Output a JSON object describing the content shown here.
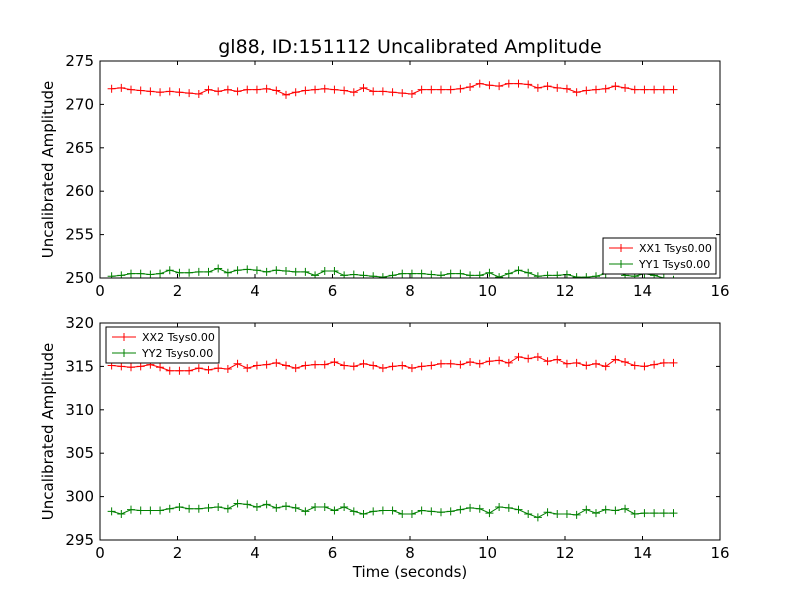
{
  "figure": {
    "title": "gl88, ID:151112 Uncalibrated Amplitude"
  },
  "chart_data": [
    {
      "type": "line",
      "title": "gl88, ID:151112 Uncalibrated Amplitude",
      "xlabel": "",
      "ylabel": "Uncalibrated Amplitude",
      "xlim": [
        0,
        16
      ],
      "ylim": [
        250,
        275
      ],
      "xticks": [
        0,
        2,
        4,
        6,
        8,
        10,
        12,
        14,
        16
      ],
      "yticks": [
        250,
        255,
        260,
        265,
        270,
        275
      ],
      "grid": false,
      "legend_position": "lower-right",
      "x": [
        0.3,
        0.55,
        0.8,
        1.05,
        1.3,
        1.55,
        1.8,
        2.05,
        2.3,
        2.55,
        2.8,
        3.05,
        3.3,
        3.55,
        3.8,
        4.05,
        4.3,
        4.55,
        4.8,
        5.05,
        5.3,
        5.55,
        5.8,
        6.05,
        6.3,
        6.55,
        6.8,
        7.05,
        7.3,
        7.55,
        7.8,
        8.05,
        8.3,
        8.55,
        8.8,
        9.05,
        9.3,
        9.55,
        9.8,
        10.05,
        10.3,
        10.55,
        10.8,
        11.05,
        11.3,
        11.55,
        11.8,
        12.05,
        12.3,
        12.55,
        12.8,
        13.05,
        13.3,
        13.55,
        13.8,
        14.05,
        14.3,
        14.55,
        14.8
      ],
      "series": [
        {
          "name": "XX1 Tsys0.00",
          "color": "#ff0000",
          "values": [
            271.8,
            271.9,
            271.7,
            271.6,
            271.5,
            271.4,
            271.5,
            271.4,
            271.3,
            271.2,
            271.7,
            271.5,
            271.7,
            271.5,
            271.7,
            271.7,
            271.8,
            271.6,
            271.1,
            271.4,
            271.6,
            271.7,
            271.8,
            271.7,
            271.6,
            271.4,
            271.9,
            271.5,
            271.5,
            271.4,
            271.3,
            271.2,
            271.7,
            271.7,
            271.7,
            271.7,
            271.8,
            272.0,
            272.4,
            272.2,
            272.1,
            272.4,
            272.4,
            272.3,
            271.9,
            272.1,
            271.9,
            271.8,
            271.4,
            271.6,
            271.7,
            271.8,
            272.1,
            271.9,
            271.7,
            271.7,
            271.7,
            271.7,
            271.7
          ]
        },
        {
          "name": "YY1 Tsys0.00",
          "color": "#008000",
          "values": [
            250.2,
            250.3,
            250.5,
            250.5,
            250.4,
            250.5,
            250.9,
            250.6,
            250.6,
            250.7,
            250.7,
            251.1,
            250.6,
            250.9,
            251.0,
            250.9,
            250.7,
            250.9,
            250.8,
            250.7,
            250.7,
            250.3,
            250.8,
            250.8,
            250.3,
            250.4,
            250.3,
            250.2,
            250.1,
            250.3,
            250.5,
            250.5,
            250.5,
            250.4,
            250.3,
            250.5,
            250.5,
            250.3,
            250.3,
            250.6,
            250.1,
            250.5,
            250.9,
            250.6,
            250.2,
            250.3,
            250.3,
            250.4,
            250.1,
            250.1,
            250.2,
            250.5,
            250.9,
            250.3,
            250.2,
            250.5,
            250.3,
            250.0,
            249.8
          ]
        }
      ]
    },
    {
      "type": "line",
      "title": "",
      "xlabel": "Time (seconds)",
      "ylabel": "Uncalibrated Amplitude",
      "xlim": [
        0,
        16
      ],
      "ylim": [
        295,
        320
      ],
      "xticks": [
        0,
        2,
        4,
        6,
        8,
        10,
        12,
        14,
        16
      ],
      "yticks": [
        295,
        300,
        305,
        310,
        315,
        320
      ],
      "grid": false,
      "legend_position": "upper-left",
      "x": [
        0.3,
        0.55,
        0.8,
        1.05,
        1.3,
        1.55,
        1.8,
        2.05,
        2.3,
        2.55,
        2.8,
        3.05,
        3.3,
        3.55,
        3.8,
        4.05,
        4.3,
        4.55,
        4.8,
        5.05,
        5.3,
        5.55,
        5.8,
        6.05,
        6.3,
        6.55,
        6.8,
        7.05,
        7.3,
        7.55,
        7.8,
        8.05,
        8.3,
        8.55,
        8.8,
        9.05,
        9.3,
        9.55,
        9.8,
        10.05,
        10.3,
        10.55,
        10.8,
        11.05,
        11.3,
        11.55,
        11.8,
        12.05,
        12.3,
        12.55,
        12.8,
        13.05,
        13.3,
        13.55,
        13.8,
        14.05,
        14.3,
        14.55,
        14.8
      ],
      "series": [
        {
          "name": "XX2 Tsys0.00",
          "color": "#ff0000",
          "values": [
            315.1,
            315.0,
            314.9,
            315.0,
            315.2,
            314.9,
            314.5,
            314.5,
            314.5,
            314.8,
            314.6,
            314.8,
            314.7,
            315.3,
            314.8,
            315.1,
            315.2,
            315.4,
            315.1,
            314.8,
            315.1,
            315.2,
            315.2,
            315.5,
            315.1,
            315.0,
            315.3,
            315.1,
            314.8,
            315.0,
            315.1,
            314.8,
            315.0,
            315.1,
            315.3,
            315.3,
            315.2,
            315.5,
            315.3,
            315.6,
            315.7,
            315.4,
            316.1,
            315.9,
            316.1,
            315.6,
            315.8,
            315.3,
            315.4,
            315.1,
            315.3,
            315.0,
            315.8,
            315.5,
            315.1,
            315.0,
            315.2,
            315.4,
            315.4
          ]
        },
        {
          "name": "YY2 Tsys0.00",
          "color": "#008000",
          "values": [
            298.3,
            298.0,
            298.5,
            298.4,
            298.4,
            298.4,
            298.6,
            298.8,
            298.6,
            298.6,
            298.7,
            298.8,
            298.6,
            299.2,
            299.1,
            298.8,
            299.1,
            298.7,
            298.9,
            298.7,
            298.3,
            298.8,
            298.8,
            298.4,
            298.8,
            298.3,
            298.0,
            298.3,
            298.4,
            298.4,
            298.0,
            298.0,
            298.4,
            298.3,
            298.2,
            298.3,
            298.5,
            298.7,
            298.6,
            298.1,
            298.8,
            298.7,
            298.5,
            298.0,
            297.6,
            298.2,
            298.0,
            298.0,
            297.9,
            298.5,
            298.1,
            298.5,
            298.4,
            298.6,
            298.0,
            298.1,
            298.1,
            298.1,
            298.1
          ]
        }
      ]
    }
  ]
}
